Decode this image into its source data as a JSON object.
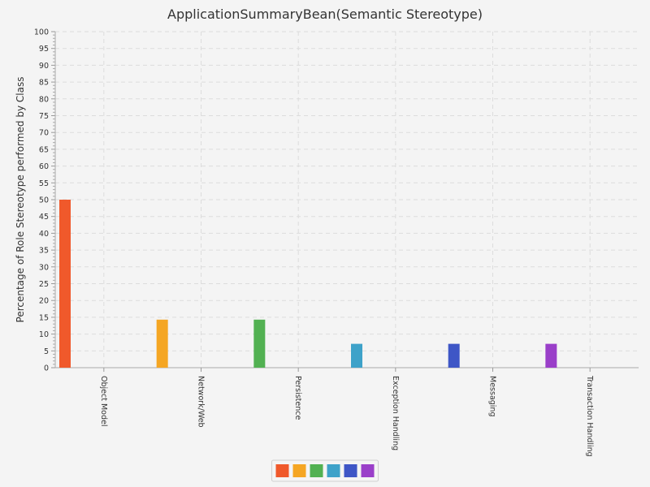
{
  "chart_data": {
    "type": "bar",
    "title": "ApplicationSummaryBean(Semantic Stereotype)",
    "xlabel": "",
    "ylabel": "Percentage of Role Stereotype performed by Class",
    "ylim": [
      0,
      100
    ],
    "ytick_step": 5,
    "grid": true,
    "legend_position": "bottom-center",
    "categories": [
      "Object Model",
      "Network/Web",
      "Persistence",
      "Exception Handling",
      "Messaging",
      "Transaction Handling"
    ],
    "values": [
      50,
      14.3,
      14.3,
      7.1,
      7.1,
      7.1
    ],
    "colors": [
      "#f0592b",
      "#f5a623",
      "#52b152",
      "#3ea2c9",
      "#3e56c6",
      "#9a3fc9"
    ],
    "series": [
      {
        "name": "",
        "color": "#f0592b"
      },
      {
        "name": "",
        "color": "#f5a623"
      },
      {
        "name": "",
        "color": "#52b152"
      },
      {
        "name": "",
        "color": "#3ea2c9"
      },
      {
        "name": "",
        "color": "#3e56c6"
      },
      {
        "name": "",
        "color": "#9a3fc9"
      }
    ]
  }
}
